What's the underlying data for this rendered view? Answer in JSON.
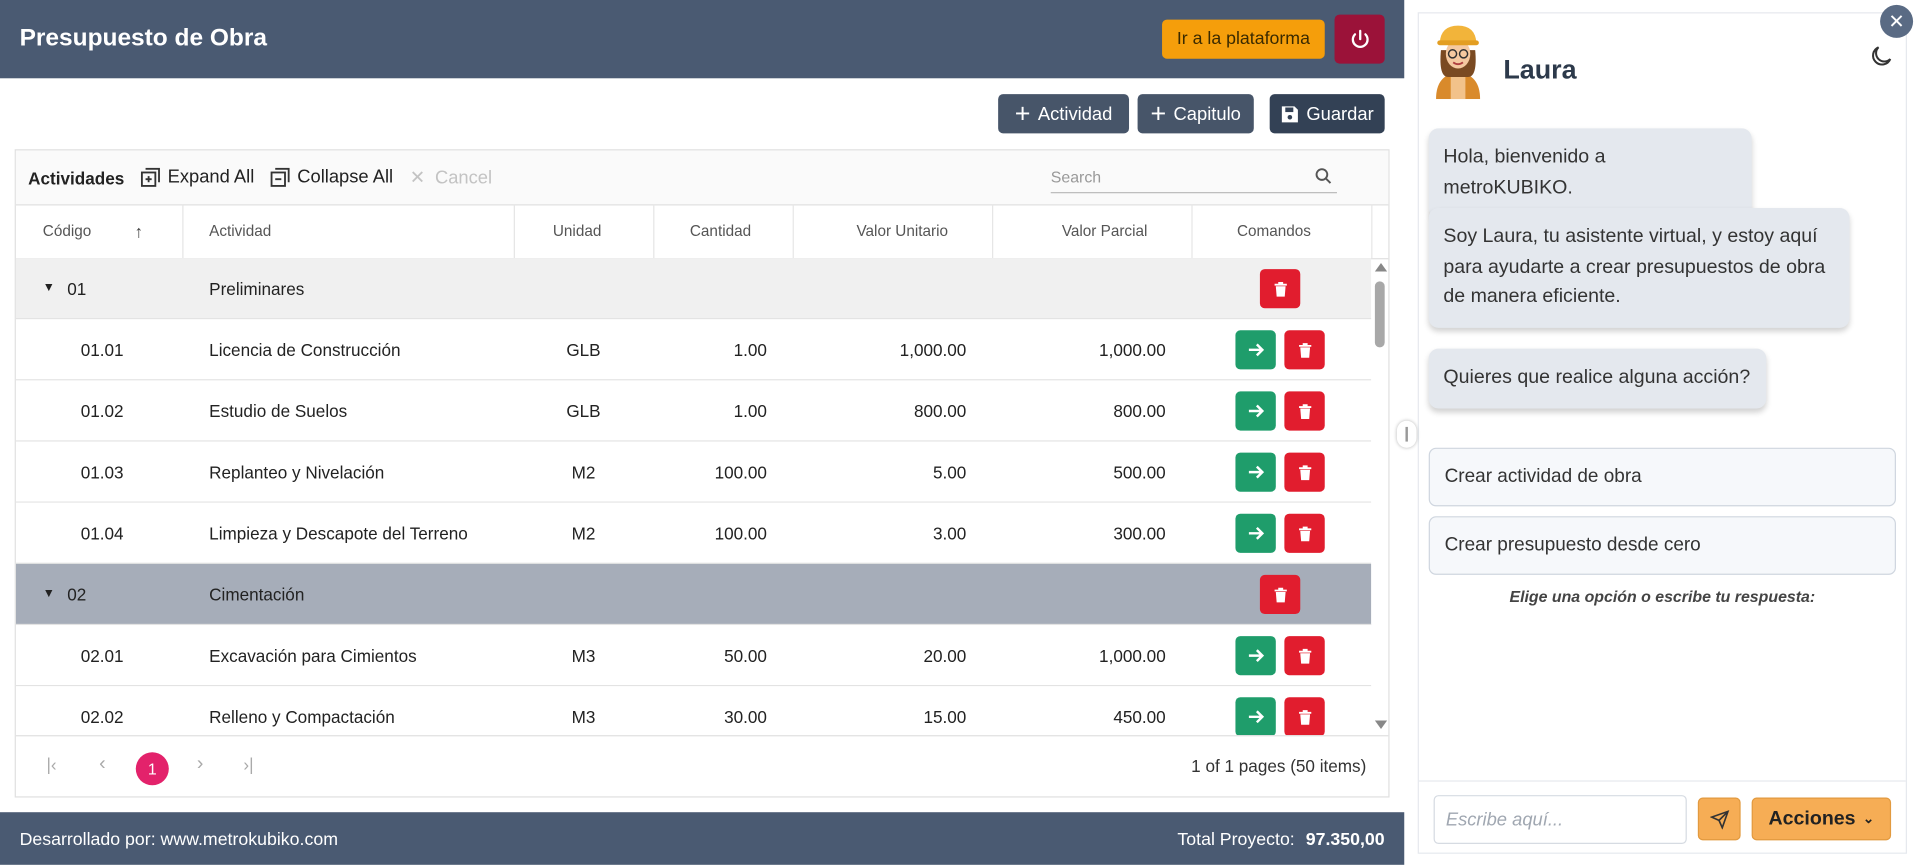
{
  "header": {
    "title": "Presupuesto de Obra",
    "platform_button": "Ir a la plataforma"
  },
  "toolbar": {
    "buttons": [
      "Actividad",
      "Capitulo",
      "Guardar"
    ]
  },
  "grid": {
    "toolbar": {
      "title": "Actividades",
      "expand": "Expand All",
      "collapse": "Collapse All",
      "cancel": "Cancel",
      "search": "Search"
    },
    "columns": [
      "Código",
      "Actividad",
      "Unidad",
      "Cantidad",
      "Valor Unitario",
      "Valor Parcial",
      "Comandos"
    ],
    "rows": [
      {
        "code": "01",
        "activity": "Preliminares"
      },
      {
        "code": "01.01",
        "activity": "Licencia de Construcción",
        "unit": "GLB",
        "quantity": "1.00",
        "unit_value": "1,000.00",
        "partial_value": "1,000.00"
      },
      {
        "code": "01.02",
        "activity": "Estudio de Suelos",
        "unit": "GLB",
        "quantity": "1.00",
        "unit_value": "800.00",
        "partial_value": "800.00"
      },
      {
        "code": "01.03",
        "activity": "Replanteo y Nivelación",
        "unit": "M2",
        "quantity": "100.00",
        "unit_value": "5.00",
        "partial_value": "500.00"
      },
      {
        "code": "01.04",
        "activity": "Limpieza y Descapote del Terreno",
        "unit": "M2",
        "quantity": "100.00",
        "unit_value": "3.00",
        "partial_value": "300.00"
      },
      {
        "code": "02",
        "activity": "Cimentación"
      },
      {
        "code": "02.01",
        "activity": "Excavación para Cimientos",
        "unit": "M3",
        "quantity": "50.00",
        "unit_value": "20.00",
        "partial_value": "1,000.00"
      },
      {
        "code": "02.02",
        "activity": "Relleno y Compactación",
        "unit": "M3",
        "quantity": "30.00",
        "unit_value": "15.00",
        "partial_value": "450.00"
      }
    ],
    "pager": {
      "page": "1",
      "info": "1 of 1 pages (50 items)"
    }
  },
  "footer": {
    "developer": "Desarrollado por: www.metrokubiko.com",
    "total_label": "Total Proyecto:",
    "total_value": "97.350,00"
  },
  "chat": {
    "name": "Laura",
    "messages": [
      "Hola, bienvenido a metroKUBIKO.",
      "Soy Laura, tu asistente virtual, y estoy aquí para ayudarte a crear presupuestos de obra de manera eficiente.",
      "Quieres que realice alguna acción?"
    ],
    "options": [
      "Crear actividad de obra",
      "Crear presupuesto desde cero"
    ],
    "prompt": "Elige una opción o escribe tu respuesta:",
    "input_placeholder": "Escribe aquí...",
    "actions_button": "Acciones"
  }
}
